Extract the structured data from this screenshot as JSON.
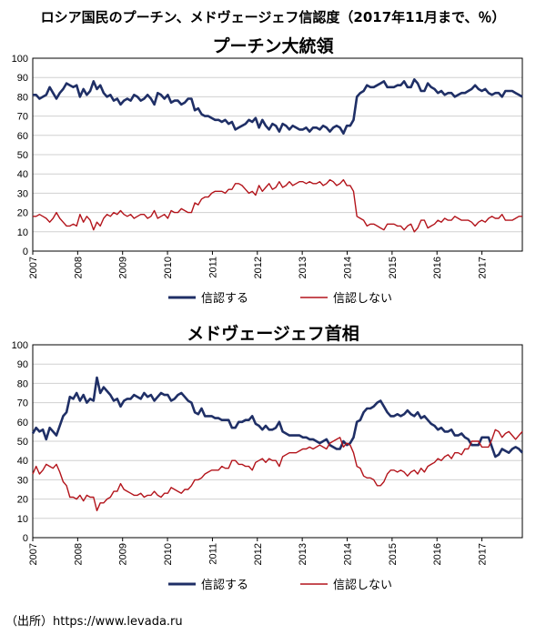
{
  "page_title": "ロシア国民のプーチン、メドヴェージェフ信認度（2017年11月まで、％）",
  "source": "（出所）https://www.levada.ru",
  "chart_data": [
    {
      "type": "line",
      "title": "プーチン大統領",
      "ylim": [
        0,
        100
      ],
      "yticks": [
        "0",
        "10",
        "20",
        "30",
        "40",
        "50",
        "60",
        "70",
        "80",
        "90",
        "100"
      ],
      "xticks": [
        "2007",
        "2008",
        "2009",
        "2010",
        "2011",
        "2012",
        "2013",
        "2014",
        "2015",
        "2016",
        "2017"
      ],
      "x_start": 2007.0,
      "x_end": 2017.9,
      "legend_position": "bottom",
      "series": [
        {
          "name": "信認する",
          "color": "#1f2f66",
          "values": [
            81,
            81,
            79,
            80,
            81,
            85,
            82,
            79,
            82,
            84,
            87,
            86,
            85,
            86,
            80,
            84,
            81,
            83,
            88,
            84,
            86,
            82,
            80,
            81,
            78,
            79,
            76,
            78,
            79,
            78,
            81,
            80,
            78,
            79,
            81,
            79,
            76,
            82,
            81,
            79,
            81,
            77,
            78,
            78,
            76,
            77,
            79,
            79,
            73,
            74,
            71,
            70,
            70,
            69,
            68,
            68,
            67,
            68,
            66,
            67,
            63,
            64,
            65,
            66,
            68,
            67,
            69,
            64,
            68,
            65,
            63,
            66,
            65,
            62,
            66,
            65,
            63,
            65,
            64,
            63,
            63,
            64,
            62,
            64,
            64,
            63,
            65,
            64,
            62,
            64,
            65,
            64,
            61,
            65,
            65,
            68,
            80,
            82,
            83,
            86,
            85,
            85,
            86,
            87,
            88,
            85,
            85,
            85,
            86,
            86,
            88,
            85,
            85,
            89,
            87,
            83,
            83,
            87,
            85,
            84,
            82,
            83,
            81,
            82,
            82,
            80,
            81,
            82,
            82,
            83,
            84,
            86,
            84,
            83,
            84,
            82,
            81,
            82,
            82,
            80,
            83,
            83,
            83,
            82,
            81,
            80
          ]
        },
        {
          "name": "信認しない",
          "color": "#b3141b",
          "values": [
            18,
            18,
            19,
            18,
            17,
            15,
            17,
            20,
            17,
            15,
            13,
            13,
            14,
            13,
            19,
            15,
            18,
            16,
            11,
            15,
            13,
            17,
            19,
            18,
            20,
            19,
            21,
            19,
            18,
            19,
            17,
            18,
            19,
            19,
            17,
            18,
            21,
            17,
            18,
            19,
            17,
            21,
            20,
            20,
            22,
            21,
            20,
            20,
            25,
            24,
            27,
            28,
            28,
            30,
            31,
            31,
            31,
            30,
            32,
            32,
            35,
            35,
            34,
            32,
            30,
            31,
            29,
            34,
            31,
            33,
            35,
            32,
            33,
            36,
            33,
            34,
            36,
            34,
            35,
            36,
            36,
            35,
            36,
            35,
            35,
            36,
            34,
            35,
            37,
            36,
            34,
            35,
            37,
            34,
            34,
            31,
            18,
            17,
            16,
            13,
            14,
            14,
            13,
            12,
            11,
            14,
            14,
            14,
            13,
            13,
            11,
            13,
            14,
            10,
            12,
            16,
            16,
            12,
            13,
            14,
            16,
            15,
            17,
            16,
            16,
            18,
            17,
            16,
            16,
            16,
            15,
            13,
            15,
            16,
            15,
            17,
            18,
            17,
            17,
            19,
            16,
            16,
            16,
            17,
            18,
            18
          ]
        }
      ]
    },
    {
      "type": "line",
      "title": "メドヴェージェフ首相",
      "ylim": [
        0,
        100
      ],
      "yticks": [
        "0",
        "10",
        "20",
        "30",
        "40",
        "50",
        "60",
        "70",
        "80",
        "90",
        "100"
      ],
      "xticks": [
        "2007",
        "2008",
        "2009",
        "2010",
        "2011",
        "2012",
        "2013",
        "2014",
        "2015",
        "2016",
        "2017"
      ],
      "x_start": 2007.0,
      "x_end": 2017.9,
      "legend_position": "bottom",
      "series": [
        {
          "name": "信認する",
          "color": "#1f2f66",
          "values": [
            54,
            57,
            55,
            56,
            51,
            57,
            55,
            53,
            58,
            63,
            65,
            73,
            72,
            75,
            71,
            74,
            70,
            72,
            71,
            83,
            75,
            78,
            76,
            74,
            71,
            72,
            68,
            71,
            72,
            72,
            74,
            73,
            72,
            75,
            73,
            74,
            71,
            73,
            75,
            74,
            74,
            71,
            72,
            74,
            75,
            73,
            71,
            70,
            65,
            64,
            67,
            63,
            63,
            63,
            62,
            62,
            61,
            61,
            61,
            57,
            57,
            60,
            60,
            61,
            61,
            63,
            59,
            58,
            56,
            58,
            56,
            56,
            57,
            60,
            55,
            54,
            53,
            53,
            53,
            53,
            52,
            52,
            51,
            51,
            50,
            49,
            50,
            51,
            48,
            47,
            46,
            46,
            50,
            48,
            49,
            52,
            60,
            61,
            65,
            67,
            67,
            68,
            70,
            71,
            68,
            65,
            63,
            63,
            64,
            63,
            64,
            66,
            64,
            63,
            65,
            62,
            63,
            61,
            59,
            58,
            56,
            57,
            55,
            55,
            56,
            53,
            53,
            54,
            52,
            51,
            48,
            48,
            48,
            52,
            52,
            52,
            47,
            42,
            43,
            46,
            45,
            44,
            46,
            47,
            46,
            44
          ]
        },
        {
          "name": "信認しない",
          "color": "#b3141b",
          "values": [
            33,
            37,
            33,
            35,
            38,
            37,
            36,
            38,
            34,
            29,
            27,
            21,
            21,
            20,
            22,
            19,
            22,
            21,
            21,
            14,
            18,
            18,
            20,
            21,
            24,
            24,
            28,
            25,
            24,
            23,
            22,
            22,
            23,
            21,
            22,
            22,
            24,
            22,
            21,
            23,
            23,
            26,
            25,
            24,
            23,
            25,
            25,
            27,
            30,
            30,
            31,
            33,
            34,
            35,
            35,
            35,
            37,
            36,
            36,
            40,
            40,
            38,
            38,
            37,
            37,
            35,
            39,
            40,
            41,
            39,
            41,
            40,
            40,
            37,
            42,
            43,
            44,
            44,
            44,
            45,
            46,
            46,
            47,
            46,
            47,
            48,
            47,
            46,
            49,
            50,
            51,
            52,
            47,
            49,
            48,
            44,
            37,
            36,
            32,
            31,
            31,
            30,
            27,
            27,
            29,
            33,
            35,
            35,
            34,
            35,
            34,
            32,
            34,
            35,
            33,
            36,
            34,
            37,
            38,
            39,
            41,
            40,
            42,
            43,
            41,
            44,
            44,
            43,
            46,
            46,
            50,
            50,
            50,
            47,
            47,
            47,
            51,
            56,
            55,
            52,
            54,
            55,
            53,
            51,
            53,
            55
          ]
        }
      ]
    }
  ]
}
